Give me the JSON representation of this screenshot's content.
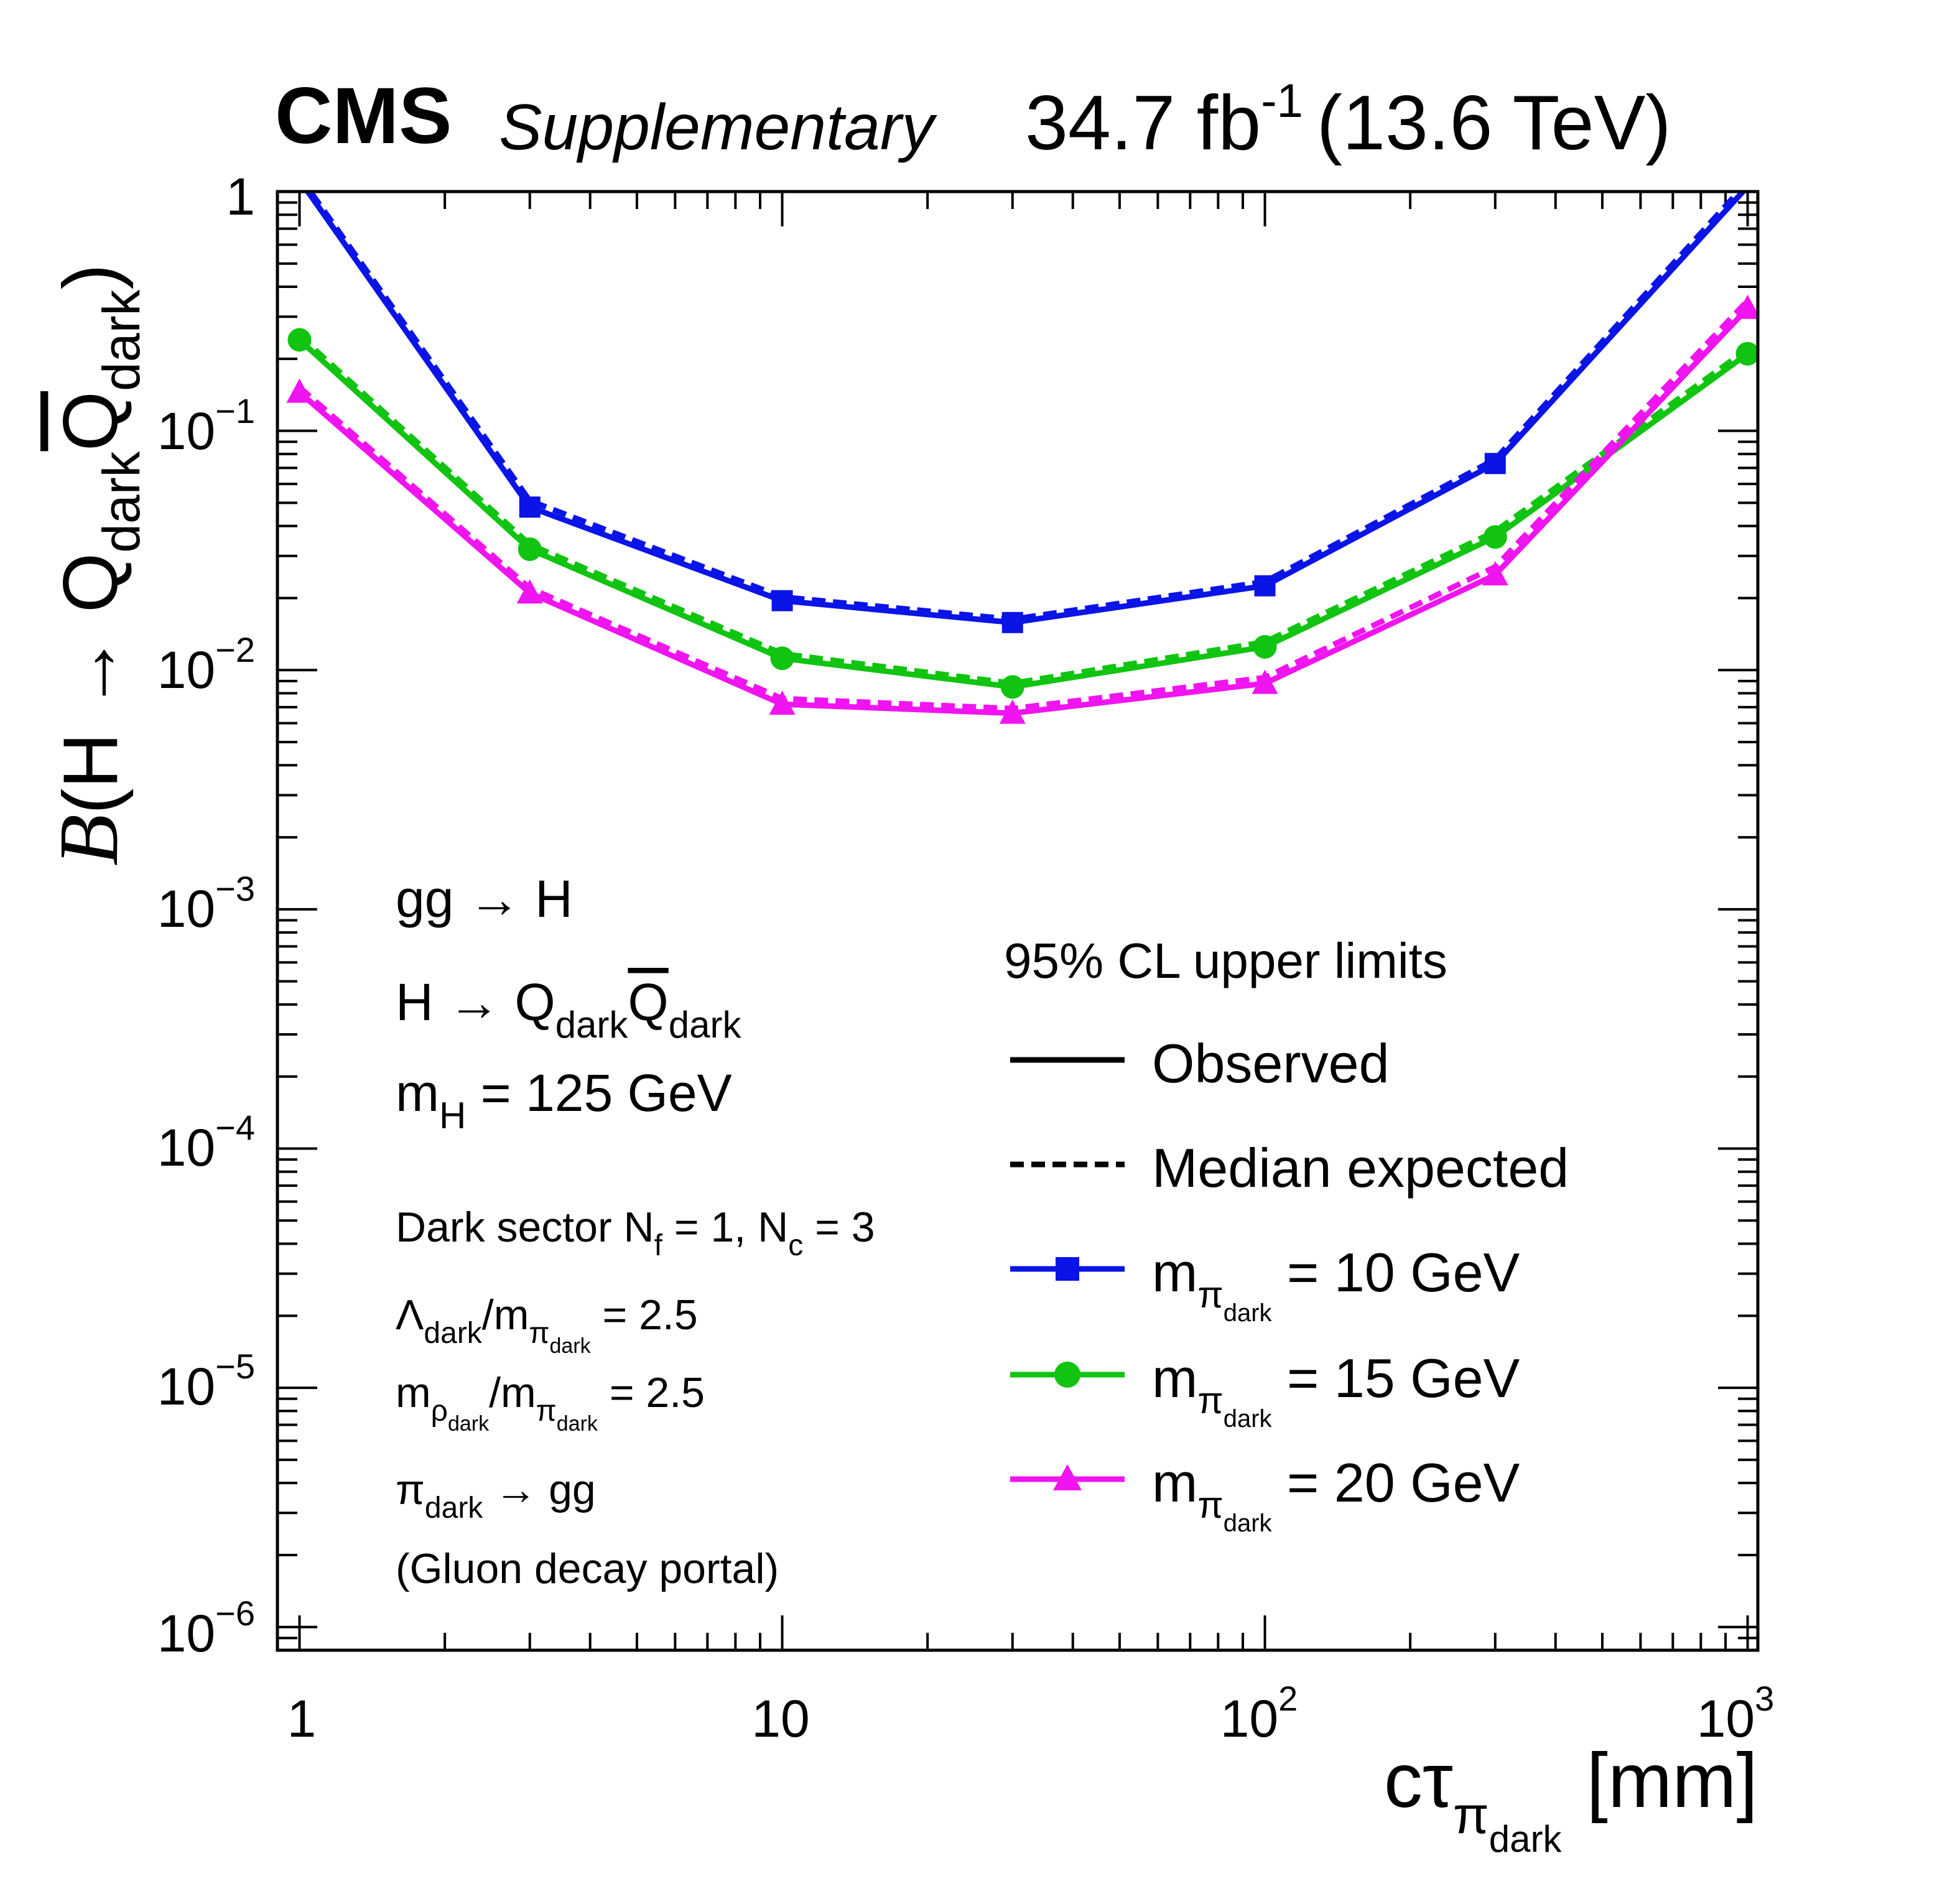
{
  "header": {
    "experiment": "CMS",
    "status": "Supplementary",
    "lumi_value": "34.7 fb",
    "lumi_exp": "-1",
    "energy": "(13.6 TeV)"
  },
  "axes": {
    "x_label": "cτ",
    "x_label_sub": "π",
    "x_label_subsub": "dark",
    "x_label_unit": "[mm]",
    "y_label_B": "B",
    "y_label_paren": "(H → Q",
    "y_label_sub1": "dark",
    "y_label_qbar": "Q",
    "y_label_sub2": "dark",
    "y_label_close": ")",
    "x_ticks": [
      {
        "base": "1",
        "exp": ""
      },
      {
        "base": "10",
        "exp": ""
      },
      {
        "base": "10",
        "exp": "2"
      },
      {
        "base": "10",
        "exp": "3"
      }
    ],
    "y_ticks": [
      {
        "base": "1",
        "exp": ""
      },
      {
        "base": "10",
        "exp": "−1"
      },
      {
        "base": "10",
        "exp": "−2"
      },
      {
        "base": "10",
        "exp": "−3"
      },
      {
        "base": "10",
        "exp": "−4"
      },
      {
        "base": "10",
        "exp": "−5"
      },
      {
        "base": "10",
        "exp": "−6"
      }
    ]
  },
  "process": {
    "line1": "gg → H",
    "line2_a": "H → Q",
    "line2_sub": "dark",
    "line2_b": "Q",
    "line2_sub2": "dark",
    "line3_a": "m",
    "line3_sub": "H",
    "line3_b": " = 125 GeV",
    "sector_a": "Dark sector N",
    "sector_sub1": "f",
    "sector_b": " = 1,  N",
    "sector_sub2": "c",
    "sector_c": " = 3",
    "lambda_a": "Λ",
    "lambda_sub": "dark",
    "lambda_b": "/m",
    "lambda_sub2": "π",
    "lambda_subsub2": "dark",
    "lambda_c": " = 2.5",
    "rho_a": "m",
    "rho_sub": "ρ",
    "rho_subsub": "dark",
    "rho_b": "/m",
    "rho_sub2": "π",
    "rho_subsub2": "dark",
    "rho_c": " = 2.5",
    "decay_a": "π",
    "decay_sub": "dark",
    "decay_b": " → gg",
    "portal": "(Gluon decay portal)"
  },
  "legend": {
    "title": "95% CL upper limits",
    "observed": "Observed",
    "expected": "Median expected",
    "m_prefix": "m",
    "m_sub": "π",
    "m_subsub": "dark",
    "entries": [
      " = 10 GeV",
      " = 15 GeV",
      " = 20 GeV"
    ]
  },
  "chart_data": {
    "type": "line",
    "title": "CMS Supplementary 34.7 fb-1 (13.6 TeV)",
    "xlabel": "cτ_π_dark [mm]",
    "ylabel": "B(H → Q_dark Q̄_dark)",
    "xscale": "log",
    "yscale": "log",
    "xlim": [
      0.9,
      1050
    ],
    "ylim": [
      8e-07,
      1
    ],
    "x": [
      1,
      3,
      10,
      30,
      100,
      300,
      1000
    ],
    "series": [
      {
        "name": "m_π_dark = 10 GeV",
        "color": "#0a14e6",
        "marker": "square",
        "observed": [
          1.12,
          0.048,
          0.0195,
          0.0158,
          0.0225,
          0.073,
          1.05
        ],
        "expected": [
          1.16,
          0.051,
          0.0202,
          0.0163,
          0.0234,
          0.076,
          1.1
        ]
      },
      {
        "name": "m_π_dark = 15 GeV",
        "color": "#11c411",
        "marker": "circle",
        "observed": [
          0.24,
          0.032,
          0.0112,
          0.0085,
          0.0125,
          0.036,
          0.21
        ],
        "expected": [
          0.25,
          0.0335,
          0.0117,
          0.0088,
          0.0131,
          0.038,
          0.22
        ]
      },
      {
        "name": "m_π_dark = 20 GeV",
        "color": "#f014f0",
        "marker": "triangle",
        "observed": [
          0.145,
          0.021,
          0.0072,
          0.0066,
          0.0088,
          0.025,
          0.325
        ],
        "expected": [
          0.152,
          0.022,
          0.0076,
          0.0069,
          0.0093,
          0.027,
          0.35
        ]
      }
    ]
  }
}
